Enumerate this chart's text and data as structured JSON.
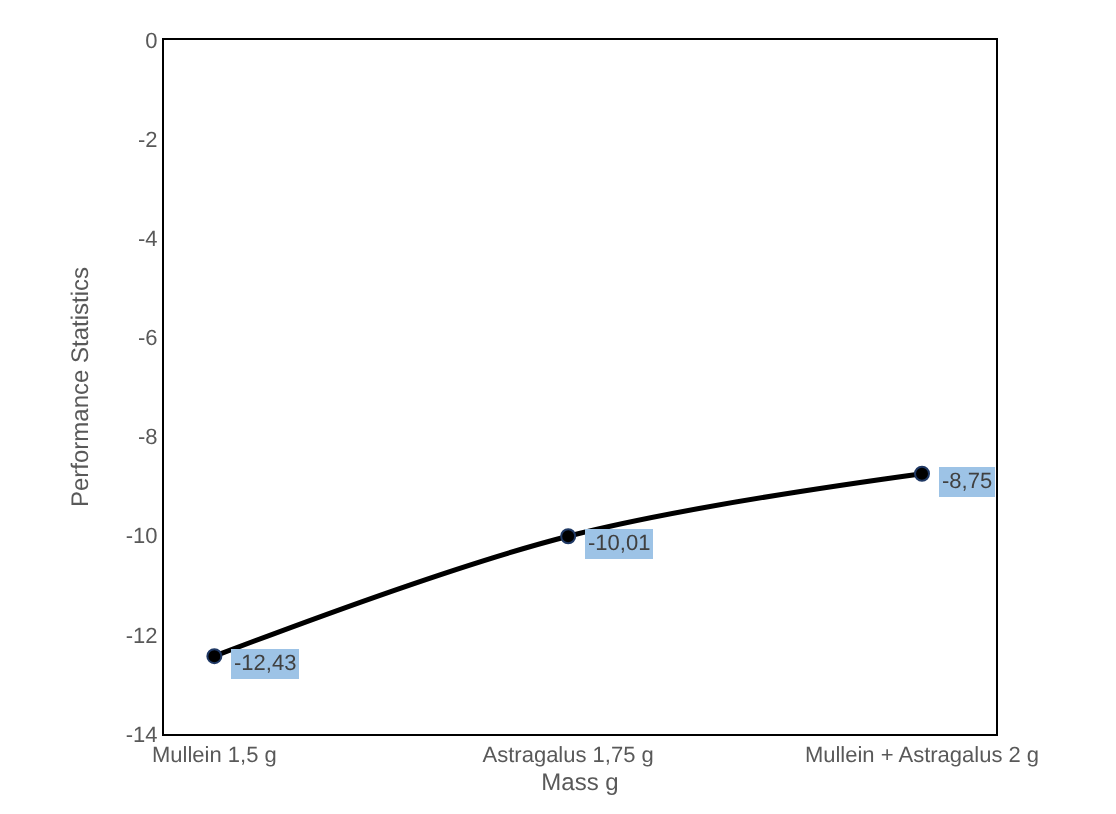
{
  "chart_data": {
    "type": "line",
    "xlabel": "Mass g",
    "ylabel": "Performance Statistics",
    "categories": [
      "Mullein 1,5 g",
      "Astragalus 1,75 g",
      "Mullein + Astragalus 2 g"
    ],
    "series": [
      {
        "color": "#000000",
        "values": [
          -12.43,
          -10.01,
          -8.75
        ],
        "value_labels": [
          "-12,43",
          "-10,01",
          "-8,75"
        ]
      }
    ],
    "ylim": [
      -14,
      0
    ],
    "yticks": [
      0,
      -2,
      -4,
      -6,
      -8,
      -10,
      -12,
      -14
    ],
    "legend": false,
    "marker": "circle",
    "line_style": "solid"
  }
}
